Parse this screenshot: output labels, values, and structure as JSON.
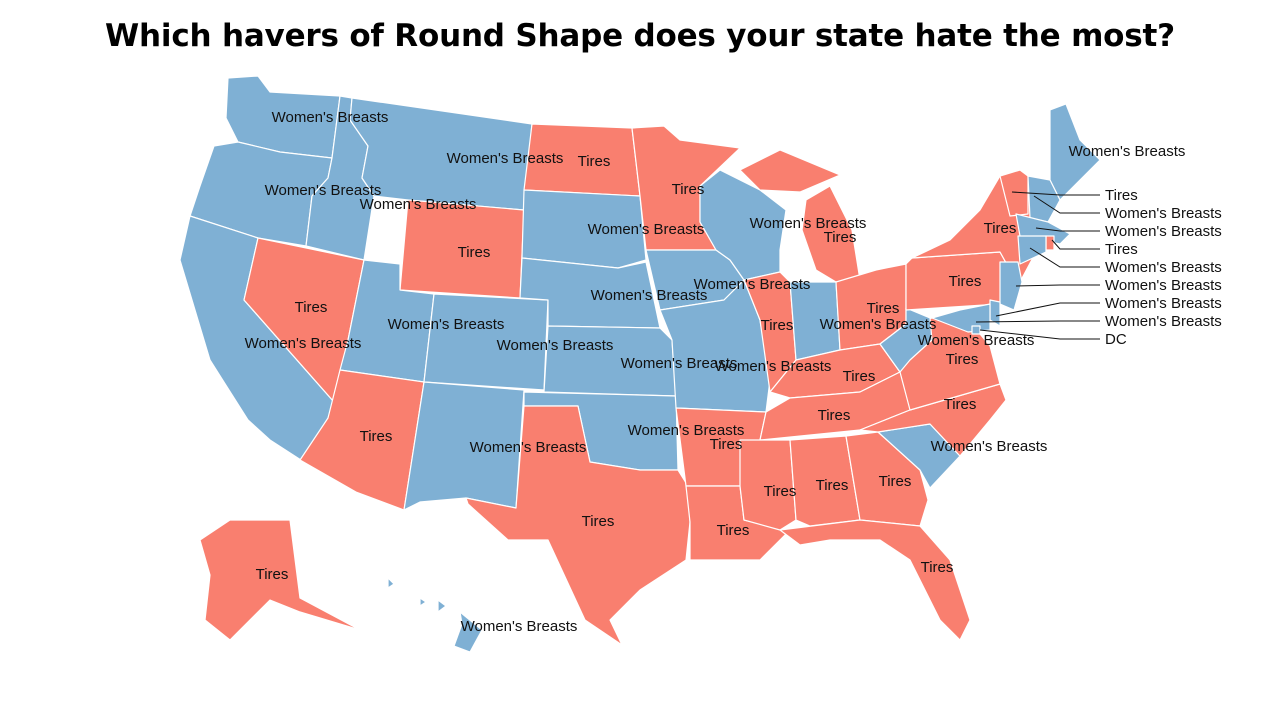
{
  "title": "Which havers of Round Shape does your state hate the most?",
  "colors": {
    "tires": "#f97f6f",
    "breasts": "#7fb0d4"
  },
  "categories": {
    "breasts": "Women's Breasts",
    "tires": "Tires",
    "dc": "DC"
  },
  "states": [
    {
      "id": "WA",
      "cat": "breasts"
    },
    {
      "id": "OR",
      "cat": "breasts"
    },
    {
      "id": "CA",
      "cat": "breasts"
    },
    {
      "id": "ID",
      "cat": "breasts"
    },
    {
      "id": "NV",
      "cat": "tires"
    },
    {
      "id": "MT",
      "cat": "breasts"
    },
    {
      "id": "WY",
      "cat": "tires"
    },
    {
      "id": "UT",
      "cat": "breasts"
    },
    {
      "id": "AZ",
      "cat": "tires"
    },
    {
      "id": "CO",
      "cat": "breasts"
    },
    {
      "id": "NM",
      "cat": "breasts"
    },
    {
      "id": "ND",
      "cat": "tires"
    },
    {
      "id": "SD",
      "cat": "breasts"
    },
    {
      "id": "NE",
      "cat": "breasts"
    },
    {
      "id": "KS",
      "cat": "breasts"
    },
    {
      "id": "OK",
      "cat": "breasts"
    },
    {
      "id": "TX",
      "cat": "tires"
    },
    {
      "id": "MN",
      "cat": "tires"
    },
    {
      "id": "IA",
      "cat": "breasts"
    },
    {
      "id": "MO",
      "cat": "breasts"
    },
    {
      "id": "AR",
      "cat": "tires"
    },
    {
      "id": "LA",
      "cat": "tires"
    },
    {
      "id": "WI",
      "cat": "breasts"
    },
    {
      "id": "IL",
      "cat": "tires"
    },
    {
      "id": "MI",
      "cat": "tires"
    },
    {
      "id": "IN",
      "cat": "breasts"
    },
    {
      "id": "OH",
      "cat": "tires"
    },
    {
      "id": "KY",
      "cat": "tires"
    },
    {
      "id": "TN",
      "cat": "tires"
    },
    {
      "id": "MS",
      "cat": "tires"
    },
    {
      "id": "AL",
      "cat": "tires"
    },
    {
      "id": "GA",
      "cat": "tires"
    },
    {
      "id": "FL",
      "cat": "tires"
    },
    {
      "id": "SC",
      "cat": "breasts"
    },
    {
      "id": "NC",
      "cat": "tires"
    },
    {
      "id": "VA",
      "cat": "tires"
    },
    {
      "id": "WV",
      "cat": "breasts"
    },
    {
      "id": "PA",
      "cat": "tires"
    },
    {
      "id": "NY",
      "cat": "tires"
    },
    {
      "id": "ME",
      "cat": "breasts"
    },
    {
      "id": "VT",
      "cat": "tires"
    },
    {
      "id": "NH",
      "cat": "breasts"
    },
    {
      "id": "MA",
      "cat": "breasts"
    },
    {
      "id": "RI",
      "cat": "tires"
    },
    {
      "id": "CT",
      "cat": "breasts"
    },
    {
      "id": "NJ",
      "cat": "breasts"
    },
    {
      "id": "DE",
      "cat": "breasts"
    },
    {
      "id": "MD",
      "cat": "breasts"
    },
    {
      "id": "DC",
      "cat": "breasts"
    },
    {
      "id": "AK",
      "cat": "tires"
    },
    {
      "id": "HI",
      "cat": "breasts"
    }
  ],
  "callouts": [
    "Tires",
    "Women's Breasts",
    "Women's Breasts",
    "Tires",
    "Women's Breasts",
    "Women's Breasts",
    "Women's Breasts",
    "Women's Breasts",
    "DC"
  ]
}
